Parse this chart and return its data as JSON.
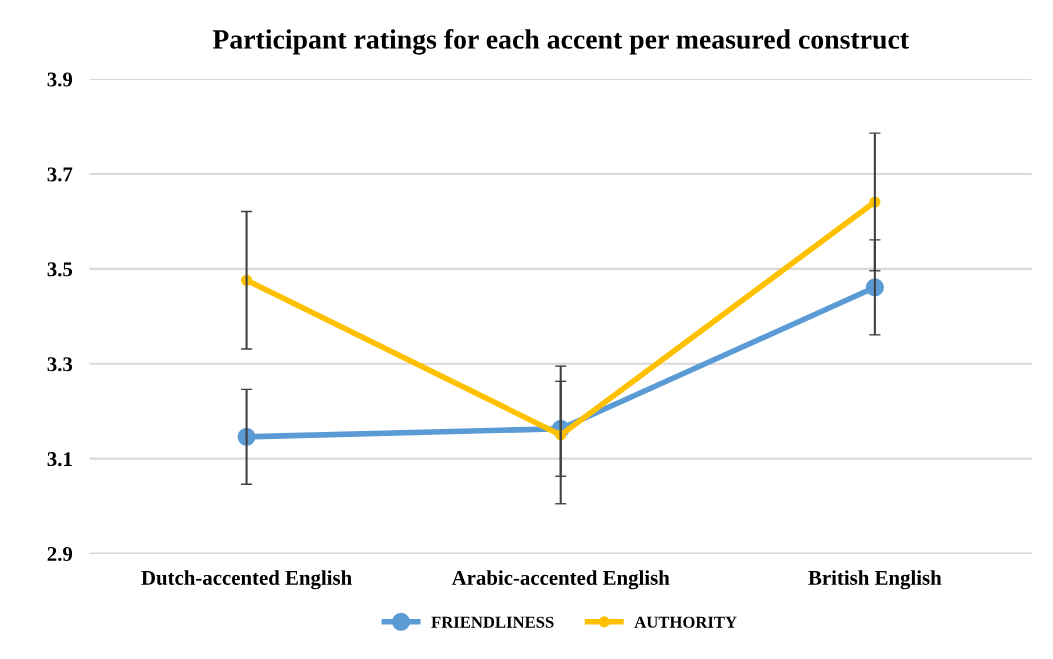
{
  "chart_data": {
    "type": "line",
    "title": "Participant ratings for each accent per measured construct",
    "categories": [
      "Dutch-accented English",
      "Arabic-accented English",
      "British English"
    ],
    "series": [
      {
        "name": "FRIENDLINESS",
        "color": "#5b9bd5",
        "values": [
          3.146,
          3.163,
          3.461
        ],
        "errors": [
          0.1,
          0.1,
          0.1
        ]
      },
      {
        "name": "AUTHORITY",
        "color": "#ffc000",
        "values": [
          3.476,
          3.15,
          3.641
        ],
        "errors": [
          0.145,
          0.145,
          0.145
        ]
      }
    ],
    "ylim": [
      2.9,
      3.9
    ],
    "yticks": [
      2.9,
      3.1,
      3.3,
      3.5,
      3.7,
      3.9
    ],
    "grid": "y",
    "legend": "bottom",
    "marker": "circle",
    "line_style": "solid"
  }
}
